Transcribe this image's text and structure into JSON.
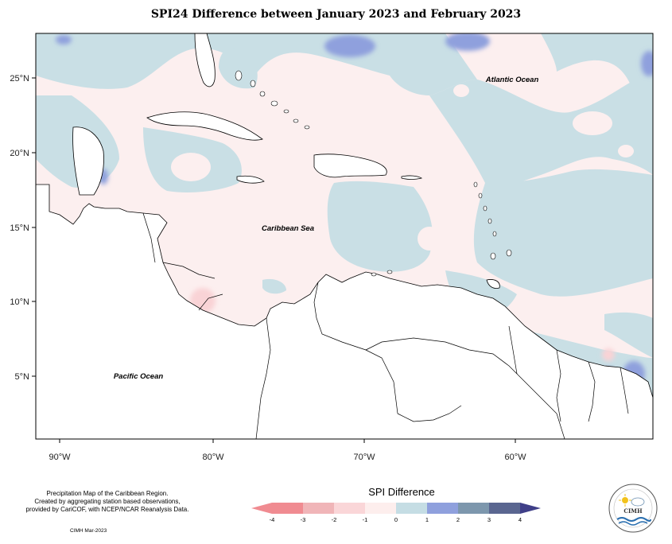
{
  "title": "SPI24 Difference between January 2023 and February 2023",
  "map": {
    "lon_ticks": [
      "90°W",
      "80°W",
      "70°W",
      "60°W"
    ],
    "lat_ticks": [
      "25°N",
      "20°N",
      "15°N",
      "10°N",
      "5°N"
    ],
    "ocean_labels": {
      "atlantic": "Atlantic Ocean",
      "caribbean": "Caribbean Sea",
      "pacific": "Pacific Ocean"
    }
  },
  "legend": {
    "title": "SPI Difference",
    "ticks": [
      "-4",
      "-3",
      "-2",
      "-1",
      "0",
      "1",
      "2",
      "3",
      "4"
    ],
    "colors": [
      "#f08b91",
      "#f0b5b8",
      "#fad6d8",
      "#fdeeed",
      "#c5dde4",
      "#8fa0dd",
      "#7d97ad",
      "#5a6690",
      "#3f3f88"
    ]
  },
  "caption": {
    "line1": "Precipitation Map of the Caribbean Region.",
    "line2": "Created by aggregating station based observations,",
    "line3": "provided by CariCOF, with NCEP/NCAR Reanalysis Data.",
    "credit": "CIMH Mar-2023"
  },
  "logo": {
    "name": "CIMH",
    "icon": "cimh-logo"
  }
}
